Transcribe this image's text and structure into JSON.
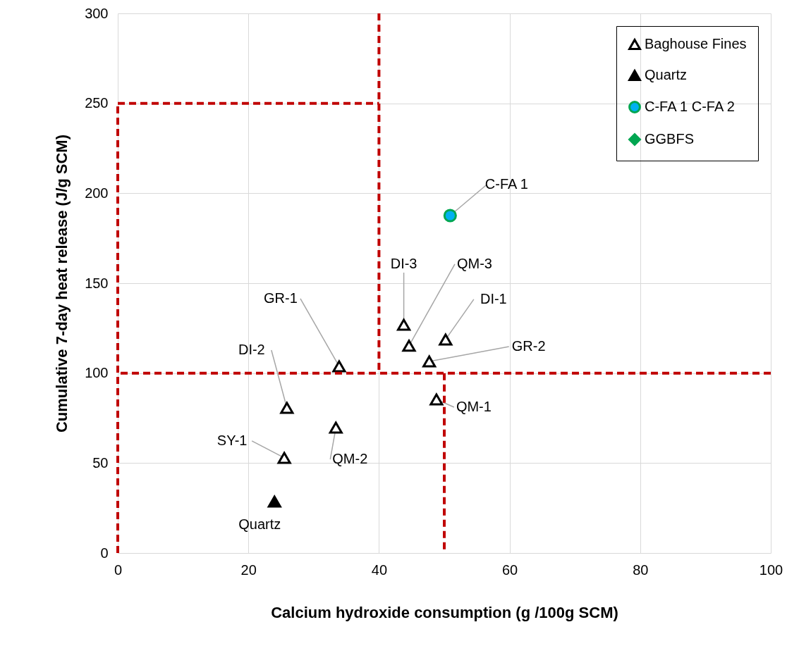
{
  "chart_data": {
    "type": "scatter",
    "xlabel": "Calcium hydroxide consumption (g /100g SCM)",
    "ylabel": "Cumulative 7-day heat release (J/g SCM)",
    "xlim": [
      0,
      100
    ],
    "xticks": [
      0,
      20,
      40,
      60,
      80,
      100
    ],
    "ylim": [
      0,
      300
    ],
    "yticks": [
      0,
      50,
      100,
      150,
      200,
      250,
      300
    ],
    "grid": true,
    "legend": "top right",
    "series": [
      {
        "name": "Baghouse Fines",
        "marker": "triangle",
        "color": "#000000",
        "x": [
          43.8,
          44.6,
          50.2,
          47.7,
          33.9,
          48.8,
          25.9,
          33.4,
          25.5
        ],
        "values": [
          126.9,
          115.2,
          118.7,
          106.5,
          103.8,
          85.4,
          80.7,
          69.7,
          52.9
        ]
      },
      {
        "name": "Quartz",
        "marker": "triangle",
        "color": "#000000",
        "x": [
          24.0
        ],
        "values": [
          28.6
        ]
      },
      {
        "name": "C-FA 1 C-FA 2",
        "marker": "circle",
        "color": "#00b0f0",
        "x": [
          50.9
        ],
        "values": [
          187.6
        ]
      },
      {
        "name": "GGBFS",
        "marker": "diamond",
        "color": "#00a651"
      },
      {
        "type": "line",
        "line_style": "dashed",
        "color": "#c00000",
        "x": [
          0,
          40
        ],
        "values": [
          250,
          250
        ]
      },
      {
        "type": "line",
        "line_style": "dashed",
        "color": "#c00000",
        "x": [
          0,
          0
        ],
        "values": [
          0,
          250
        ]
      },
      {
        "type": "line",
        "line_style": "dashed",
        "color": "#c00000",
        "x": [
          40,
          40
        ],
        "values": [
          300,
          100
        ]
      },
      {
        "type": "line",
        "line_style": "dashed",
        "color": "#c00000",
        "x": [
          50,
          50
        ],
        "values": [
          100,
          0
        ]
      }
    ],
    "ref_lines": [
      {
        "axis": "y",
        "value": 100,
        "color": "#c00000",
        "line_style": "dashed"
      }
    ],
    "annotations": [
      {
        "text": "C-FA 1",
        "x": 50.9,
        "y": 187.6
      },
      {
        "text": "DI-3",
        "x": 43.8,
        "y": 126.9
      },
      {
        "text": "QM-3",
        "x": 44.6,
        "y": 115.2
      },
      {
        "text": "DI-1",
        "x": 50.2,
        "y": 118.7
      },
      {
        "text": "GR-2",
        "x": 47.7,
        "y": 106.5
      },
      {
        "text": "GR-1",
        "x": 33.9,
        "y": 103.8
      },
      {
        "text": "QM-1",
        "x": 48.8,
        "y": 85.4
      },
      {
        "text": "DI-2",
        "x": 25.9,
        "y": 80.7
      },
      {
        "text": "QM-2",
        "x": 33.4,
        "y": 69.7
      },
      {
        "text": "SY-1",
        "x": 25.5,
        "y": 52.9
      },
      {
        "text": "Quartz",
        "x": 24.0,
        "y": 28.6
      }
    ]
  }
}
